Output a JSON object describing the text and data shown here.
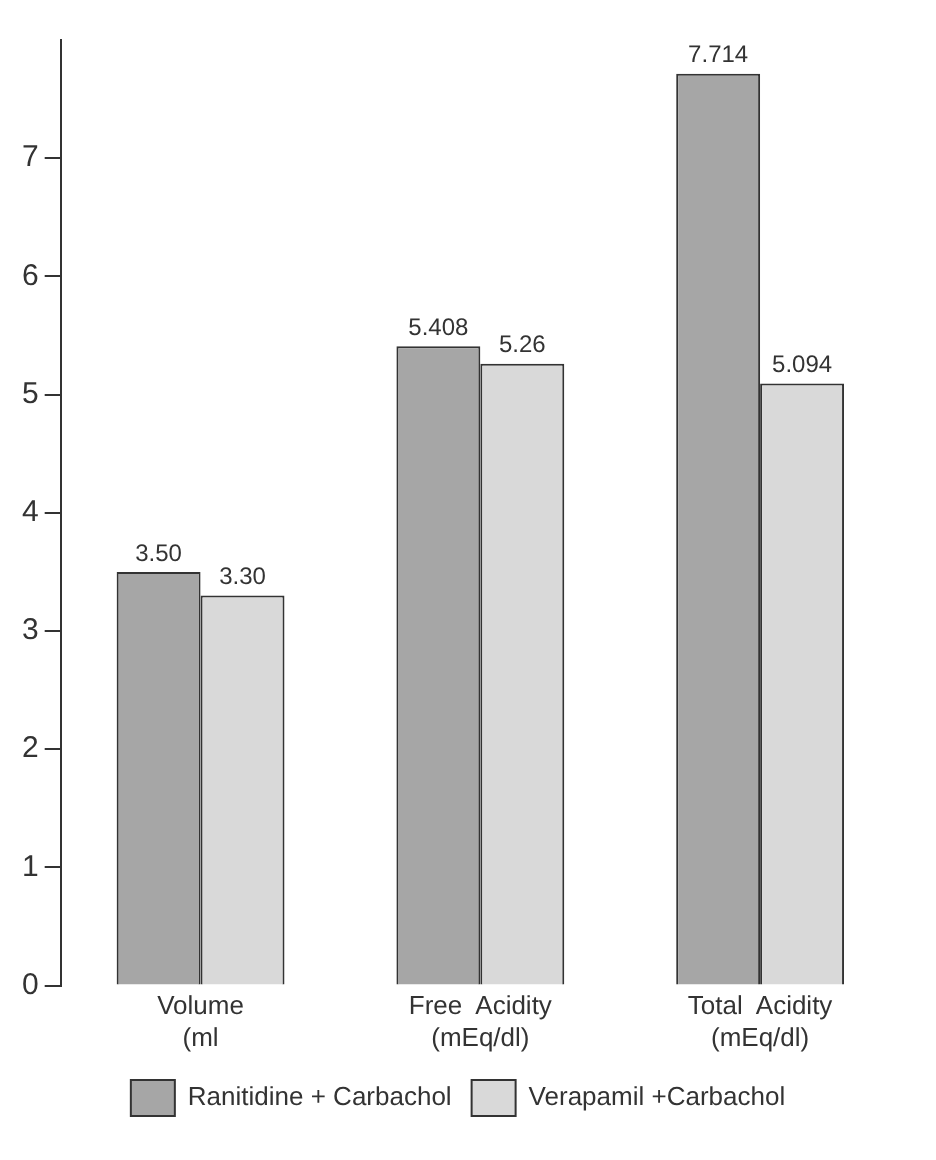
{
  "chart_data": {
    "type": "bar",
    "categories": [
      "Volume\n(ml",
      "Free  Acidity\n(mEq/dl)",
      "Total  Acidity\n(mEq/dl)"
    ],
    "series": [
      {
        "name": "Ranitidine + Carbachol",
        "color": "#a6a6a6",
        "values": [
          3.5,
          5.408,
          7.714
        ],
        "value_labels": [
          "3.50",
          "5.408",
          "7.714"
        ]
      },
      {
        "name": "Verapamil +Carbachol",
        "color": "#d9d9d9",
        "values": [
          3.3,
          5.26,
          5.094
        ],
        "value_labels": [
          "3.30",
          "5.26",
          "5.094"
        ]
      }
    ],
    "ylim": [
      0,
      8
    ],
    "yticks": [
      0,
      1,
      2,
      3,
      4,
      5,
      6,
      7
    ],
    "grid": false,
    "legend": "bottom"
  }
}
